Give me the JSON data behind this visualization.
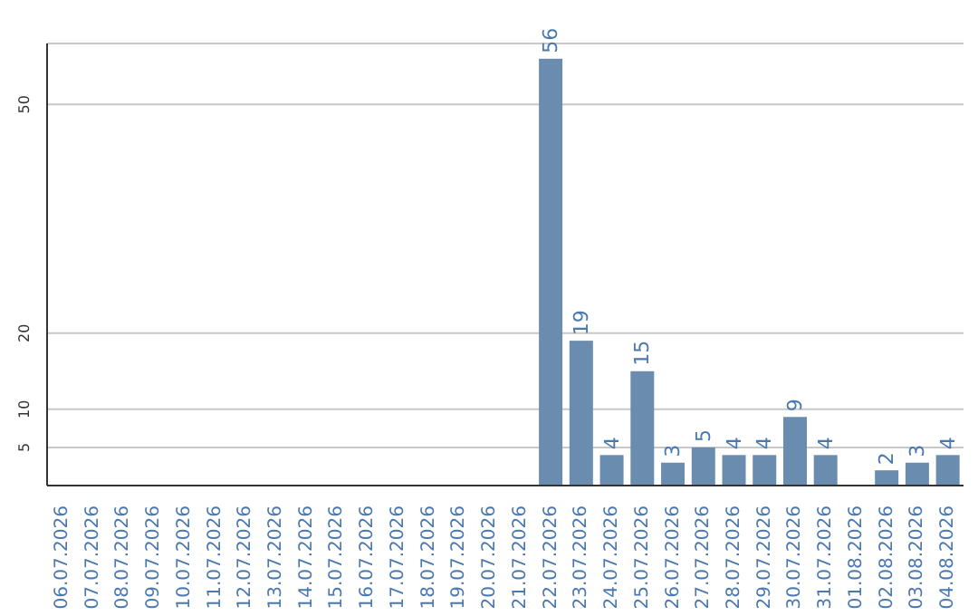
{
  "chart_data": {
    "type": "bar",
    "categories": [
      "06.07.2026",
      "07.07.2026",
      "08.07.2026",
      "09.07.2026",
      "10.07.2026",
      "11.07.2026",
      "12.07.2026",
      "13.07.2026",
      "14.07.2026",
      "15.07.2026",
      "16.07.2026",
      "17.07.2026",
      "18.07.2026",
      "19.07.2026",
      "20.07.2026",
      "21.07.2026",
      "22.07.2026",
      "23.07.2026",
      "24.07.2026",
      "25.07.2026",
      "26.07.2026",
      "27.07.2026",
      "28.07.2026",
      "29.07.2026",
      "30.07.2026",
      "31.07.2026",
      "01.08.2026",
      "02.08.2026",
      "03.08.2026",
      "04.08.2026"
    ],
    "values": [
      0,
      0,
      0,
      0,
      0,
      0,
      0,
      0,
      0,
      0,
      0,
      0,
      0,
      0,
      0,
      0,
      56,
      19,
      4,
      15,
      3,
      5,
      4,
      4,
      9,
      4,
      0,
      2,
      3,
      4
    ],
    "value_labels": [
      null,
      null,
      null,
      null,
      null,
      null,
      null,
      null,
      null,
      null,
      null,
      null,
      null,
      null,
      null,
      null,
      "56",
      "19",
      "4",
      "15",
      "3",
      "5",
      "4",
      "4",
      "9",
      "4",
      null,
      "2",
      "3",
      "4"
    ],
    "color": "#6a8caf",
    "ylim": [
      0,
      58
    ],
    "yticks": [
      5,
      10,
      20,
      50
    ],
    "grid": "y"
  }
}
